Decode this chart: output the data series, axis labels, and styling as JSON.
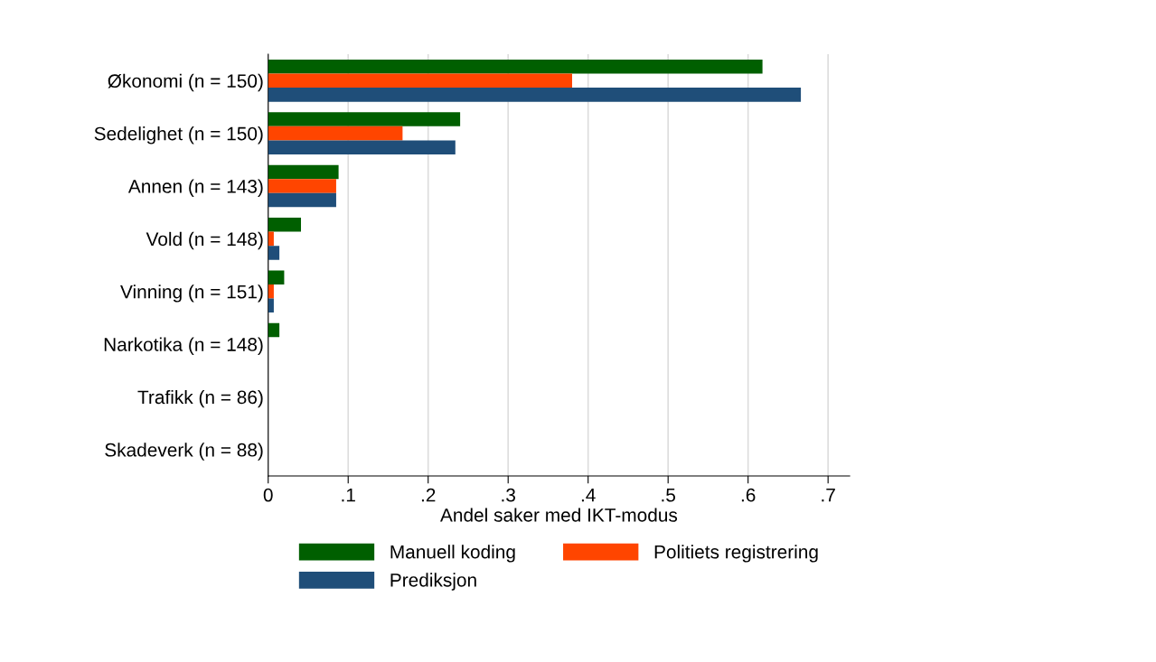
{
  "chart_data": {
    "type": "bar",
    "orientation": "horizontal",
    "xlabel": "Andel saker med IKT-modus",
    "categories": [
      "Økonomi (n = 150)",
      "Sedelighet (n = 150)",
      "Annen (n = 143)",
      "Vold (n = 148)",
      "Vinning (n = 151)",
      "Narkotika (n = 148)",
      "Trafikk (n = 86)",
      "Skadeverk (n = 88)"
    ],
    "series": [
      {
        "name": "Manuell koding",
        "color": "#005f00",
        "values": [
          0.618,
          0.24,
          0.088,
          0.041,
          0.02,
          0.014,
          0,
          0
        ]
      },
      {
        "name": "Politiets registrering",
        "color": "#ff4500",
        "values": [
          0.38,
          0.168,
          0.085,
          0.007,
          0.007,
          0,
          0,
          0
        ]
      },
      {
        "name": "Prediksjon",
        "color": "#1f4e79",
        "values": [
          0.666,
          0.234,
          0.085,
          0.014,
          0.007,
          0,
          0,
          0
        ]
      }
    ],
    "xlim": [
      0,
      0.727
    ],
    "xticks": [
      0,
      {
        "value": 0.1,
        "label": ".1"
      },
      {
        "value": 0.2,
        "label": ".2"
      },
      {
        "value": 0.3,
        "label": ".3"
      },
      {
        "value": 0.4,
        "label": ".4"
      },
      {
        "value": 0.5,
        "label": ".5"
      },
      {
        "value": 0.6,
        "label": ".6"
      },
      {
        "value": 0.7,
        "label": ".7"
      }
    ],
    "grid": "x",
    "legend": "bottom"
  }
}
